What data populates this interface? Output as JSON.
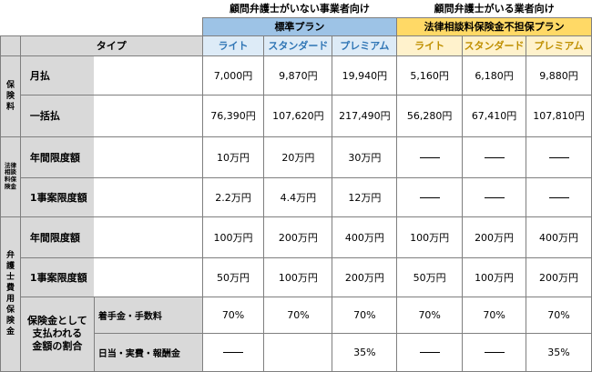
{
  "header": {
    "group_no_lawyer": "顧問弁護士がいない事業者向け",
    "group_with_lawyer": "顧問弁護士がいる業者向け",
    "standard_plan": "標準プラン",
    "no_coverage_plan": "法律相談料保険金不担保プラン",
    "type_label": "タイプ",
    "cols": [
      "ライト",
      "スタンダード",
      "プレミアム",
      "ライト",
      "スタンダード",
      "プレミアム"
    ]
  },
  "sections": {
    "premium": "保険料",
    "consult": "法律相談料保険金",
    "lawyer": "弁護士費用保険金"
  },
  "rows": {
    "monthly": {
      "label": "月払",
      "values": [
        "7,000円",
        "9,870円",
        "19,940円",
        "5,160円",
        "6,180円",
        "9,880円"
      ]
    },
    "lump": {
      "label": "一括払",
      "values": [
        "76,390円",
        "107,620円",
        "217,490円",
        "56,280円",
        "67,410円",
        "107,810円"
      ]
    },
    "consult_annual": {
      "label": "年間限度額",
      "values": [
        "10万円",
        "20万円",
        "30万円"
      ]
    },
    "consult_case": {
      "label": "1事案限度額",
      "values": [
        "2.2万円",
        "4.4万円",
        "12万円"
      ]
    },
    "lawyer_annual": {
      "label": "年間限度額",
      "values": [
        "100万円",
        "200万円",
        "400万円",
        "100万円",
        "200万円",
        "400万円"
      ]
    },
    "lawyer_case": {
      "label": "1事案限度額",
      "values": [
        "50万円",
        "100万円",
        "200万円",
        "50万円",
        "100万円",
        "200万円"
      ]
    },
    "ratio": {
      "label_line1": "保険金として",
      "label_line2": "支払われる",
      "label_line3": "金額の割合",
      "fee_label": "着手金・手数料",
      "fee_values": [
        "70%",
        "70%",
        "70%",
        "70%",
        "70%",
        "70%"
      ],
      "daily_label": "日当・実費・報酬金",
      "daily_values": [
        "35%",
        "35%"
      ]
    }
  }
}
